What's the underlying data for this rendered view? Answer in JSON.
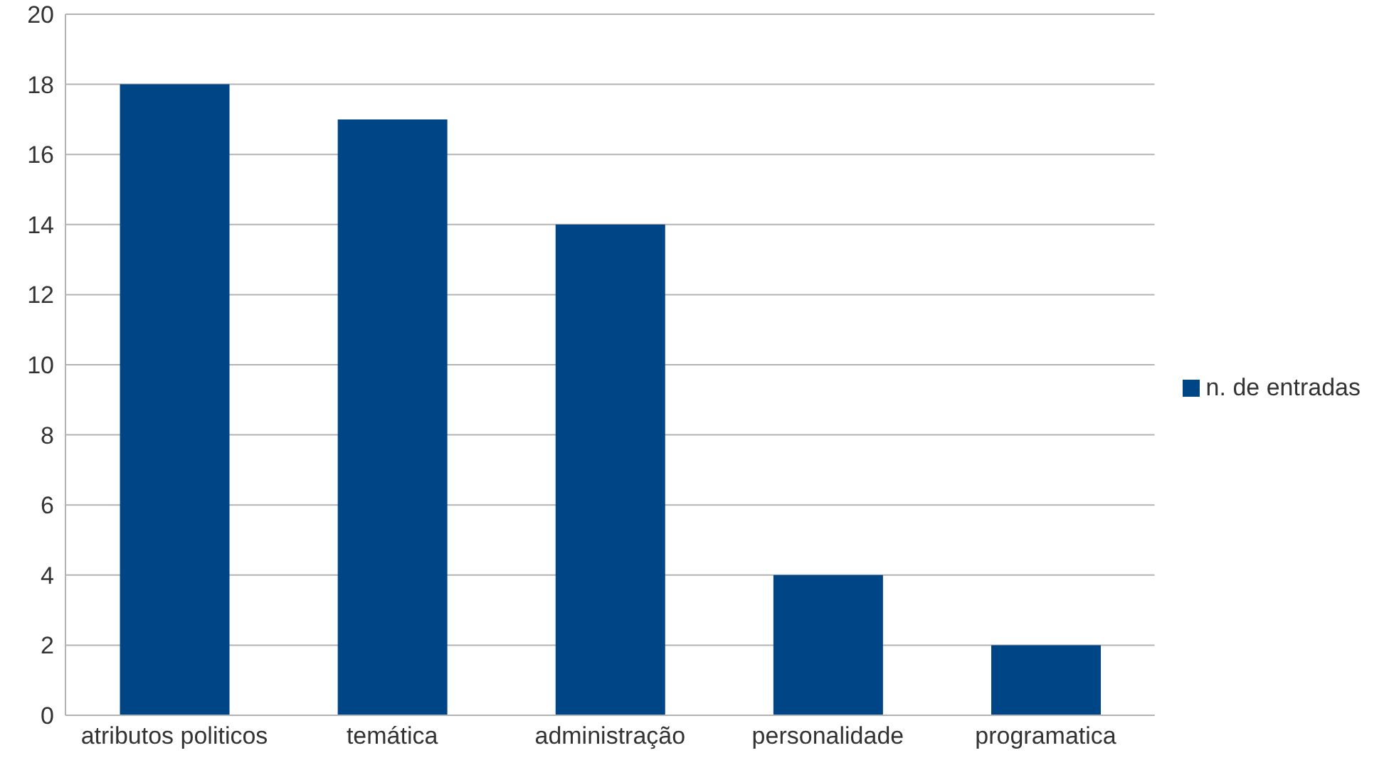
{
  "chart_data": {
    "type": "bar",
    "categories": [
      "atributos politicos",
      "temática",
      "administração",
      "personalidade",
      "programatica"
    ],
    "series": [
      {
        "name": "n. de entradas",
        "color": "#004586",
        "values": [
          18,
          17,
          14,
          4,
          2
        ]
      }
    ],
    "ylim": [
      0,
      20
    ],
    "yticks": [
      0,
      2,
      4,
      6,
      8,
      10,
      12,
      14,
      16,
      18,
      20
    ],
    "grid": "y",
    "legend": "right"
  }
}
